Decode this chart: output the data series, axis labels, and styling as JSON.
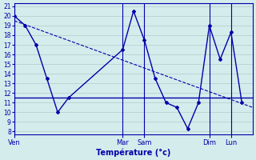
{
  "xlabel": "Température (°c)",
  "background_color": "#d4ecec",
  "grid_color": "#b0cccc",
  "line_color": "#0000aa",
  "ylim": [
    8,
    21
  ],
  "yticks": [
    8,
    9,
    10,
    11,
    12,
    13,
    14,
    15,
    16,
    17,
    18,
    19,
    20,
    21
  ],
  "day_labels": [
    "Ven",
    "Mar",
    "Sam",
    "Dim",
    "Lun"
  ],
  "day_x": [
    0,
    60,
    72,
    108,
    120
  ],
  "xlim": [
    0,
    132
  ],
  "temp_x": [
    0,
    6,
    12,
    18,
    24,
    30,
    60,
    66,
    72,
    78,
    84,
    90,
    96,
    102,
    108,
    114,
    120,
    126
  ],
  "temp_y": [
    20,
    19,
    17,
    13.5,
    10,
    11.5,
    16.5,
    20.5,
    17.5,
    13.5,
    11,
    10.5,
    8.3,
    11,
    19.0,
    15.5,
    18.3,
    11.0
  ],
  "trend_x": [
    0,
    132
  ],
  "trend_y": [
    19.5,
    10.5
  ],
  "hline_x": [
    0,
    132
  ],
  "hline_y": [
    11.5,
    11.5
  ]
}
